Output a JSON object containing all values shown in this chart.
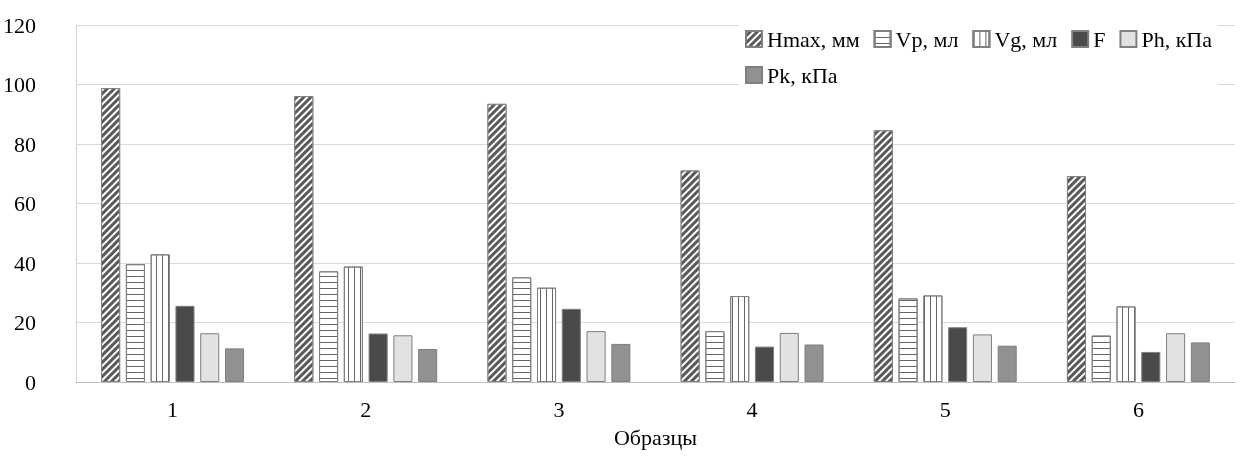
{
  "chart_data": {
    "type": "bar",
    "xlabel": "Образцы",
    "categories": [
      "1",
      "2",
      "3",
      "4",
      "5",
      "6"
    ],
    "series": [
      {
        "name": "Hmax, мм",
        "color": "#595959",
        "values": [
          98.8,
          96.1,
          93.5,
          71.1,
          84.6,
          69.2
        ]
      },
      {
        "name": "Vp, мл",
        "color": "#ffffff",
        "values": [
          39.6,
          37.2,
          35.2,
          17.1,
          28.1,
          15.6
        ]
      },
      {
        "name": "Vg, мл",
        "color": "#ffffff",
        "values": [
          42.9,
          38.8,
          31.7,
          28.9,
          29.1,
          25.4
        ]
      },
      {
        "name": "F",
        "color": "#4a4a4c",
        "values": [
          25.6,
          16.3,
          24.6,
          11.9,
          18.4,
          10.1
        ]
      },
      {
        "name": "Ph, кПа",
        "color": "#e1e2e4",
        "values": [
          16.4,
          15.7,
          17.1,
          16.5,
          16.0,
          16.4
        ]
      },
      {
        "name": "Pk, кПа",
        "color": "#909193",
        "values": [
          11.3,
          11.1,
          12.8,
          12.6,
          12.2,
          13.3
        ]
      }
    ],
    "ylim": [
      0,
      120
    ],
    "yticks": [
      0,
      20,
      40,
      60,
      80,
      100,
      120
    ],
    "grid": "y",
    "legend": "top right"
  }
}
